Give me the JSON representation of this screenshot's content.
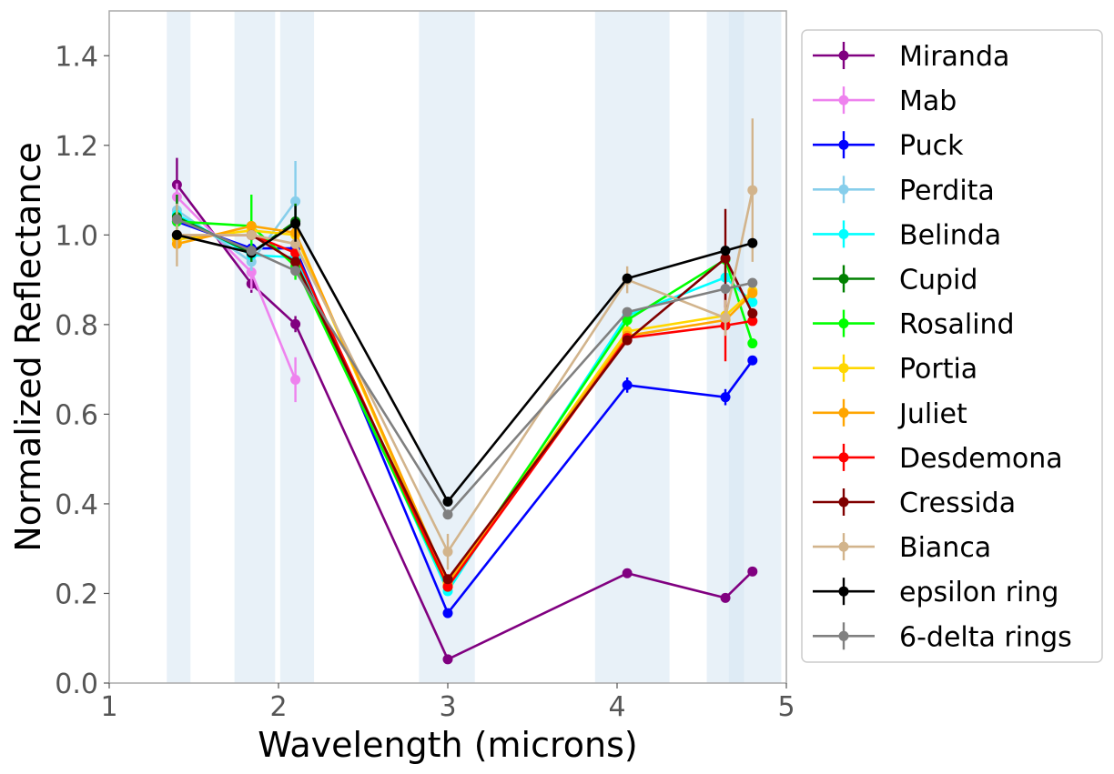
{
  "chart_data": {
    "type": "line",
    "title": "",
    "xlabel": "Wavelength (microns)",
    "ylabel": "Normalized Reflectance",
    "xlim": [
      1,
      5
    ],
    "ylim": [
      0,
      1.5
    ],
    "xticks": [
      1,
      2,
      3,
      4,
      5
    ],
    "xtick_labels": [
      "1",
      "2",
      "3",
      "4",
      "5"
    ],
    "yticks": [
      0.0,
      0.2,
      0.4,
      0.6,
      0.8,
      1.0,
      1.2,
      1.4
    ],
    "ytick_labels": [
      "0.0",
      "0.2",
      "0.4",
      "0.6",
      "0.8",
      "1.0",
      "1.2",
      "1.4"
    ],
    "grid": false,
    "legend_position": "right-outside",
    "band_color": "#d6e6f2",
    "shaded_bands": [
      [
        1.34,
        1.48
      ],
      [
        1.74,
        1.98
      ],
      [
        2.01,
        2.21
      ],
      [
        2.83,
        3.16
      ],
      [
        3.87,
        4.31
      ],
      [
        4.53,
        4.97
      ],
      [
        4.66,
        4.75
      ]
    ],
    "series": [
      {
        "name": "Miranda",
        "color": "#800080",
        "x": [
          1.4,
          1.84,
          2.1,
          3.0,
          4.06,
          4.64,
          4.8
        ],
        "y": [
          1.112,
          0.891,
          0.801,
          0.053,
          0.245,
          0.19,
          0.249
        ],
        "err": [
          0.06,
          0.02,
          0.018,
          0.01,
          0.008,
          0.008,
          0.008
        ]
      },
      {
        "name": "Mab",
        "color": "#ee82ee",
        "x": [
          1.4,
          1.84,
          2.1
        ],
        "y": [
          1.085,
          0.917,
          0.677
        ],
        "err": [
          0.03,
          0.04,
          0.05
        ]
      },
      {
        "name": "Puck",
        "color": "#0000ff",
        "x": [
          1.4,
          1.84,
          2.1,
          3.0,
          4.06,
          4.64,
          4.8
        ],
        "y": [
          1.03,
          0.97,
          0.97,
          0.156,
          0.665,
          0.638,
          0.72
        ],
        "err": [
          0.01,
          0.01,
          0.01,
          0.01,
          0.017,
          0.018,
          0.01
        ]
      },
      {
        "name": "Perdita",
        "color": "#87ceeb",
        "x": [
          1.4,
          1.84,
          2.1
        ],
        "y": [
          1.055,
          0.94,
          1.075
        ],
        "err": [
          0.02,
          0.02,
          0.09
        ]
      },
      {
        "name": "Belinda",
        "color": "#00ffff",
        "x": [
          1.4,
          1.84,
          2.1,
          3.0,
          4.06,
          4.64,
          4.8
        ],
        "y": [
          1.045,
          0.955,
          0.95,
          0.205,
          0.82,
          0.905,
          0.85
        ],
        "err": [
          0.01,
          0.01,
          0.01,
          0.01,
          0.01,
          0.01,
          0.01
        ]
      },
      {
        "name": "Cupid",
        "color": "#008000",
        "x": [
          1.4,
          1.84,
          2.1
        ],
        "y": [
          1.04,
          0.96,
          1.03
        ],
        "err": [
          0.05,
          0.02,
          0.04
        ]
      },
      {
        "name": "Rosalind",
        "color": "#00ff00",
        "x": [
          1.4,
          1.84,
          2.1,
          3.0,
          4.06,
          4.64,
          4.8
        ],
        "y": [
          1.03,
          1.02,
          0.93,
          0.215,
          0.81,
          0.945,
          0.758
        ],
        "err": [
          0.03,
          0.07,
          0.03,
          0.01,
          0.02,
          0.03,
          0.01
        ]
      },
      {
        "name": "Portia",
        "color": "#ffd700",
        "x": [
          1.4,
          1.84,
          2.1,
          3.0,
          4.06,
          4.64,
          4.8
        ],
        "y": [
          0.99,
          1.01,
          1.0,
          0.22,
          0.785,
          0.82,
          0.875
        ],
        "err": [
          0.01,
          0.01,
          0.01,
          0.01,
          0.01,
          0.01,
          0.01
        ]
      },
      {
        "name": "Juliet",
        "color": "#ffa500",
        "x": [
          1.4,
          1.84,
          2.1,
          3.0,
          4.06,
          4.64,
          4.8
        ],
        "y": [
          0.98,
          1.02,
          1.005,
          0.225,
          0.775,
          0.81,
          0.87
        ],
        "err": [
          0.01,
          0.01,
          0.01,
          0.01,
          0.01,
          0.01,
          0.01
        ]
      },
      {
        "name": "Desdemona",
        "color": "#ff0000",
        "x": [
          1.4,
          1.84,
          2.1,
          3.0,
          4.06,
          4.64,
          4.8
        ],
        "y": [
          1.0,
          1.0,
          0.96,
          0.215,
          0.77,
          0.798,
          0.808
        ],
        "err": [
          0.01,
          0.01,
          0.01,
          0.01,
          0.01,
          0.08,
          0.01
        ]
      },
      {
        "name": "Cressida",
        "color": "#800000",
        "x": [
          1.4,
          1.84,
          2.1,
          3.0,
          4.06,
          4.64,
          4.8
        ],
        "y": [
          1.0,
          1.0,
          0.94,
          0.232,
          0.765,
          0.948,
          0.825
        ],
        "err": [
          0.01,
          0.01,
          0.01,
          0.01,
          0.01,
          0.11,
          0.01
        ]
      },
      {
        "name": "Bianca",
        "color": "#d2b48c",
        "x": [
          1.4,
          1.84,
          2.1,
          3.0,
          4.06,
          4.64,
          4.8
        ],
        "y": [
          1.0,
          1.0,
          0.98,
          0.293,
          0.9,
          0.815,
          1.1
        ],
        "err": [
          0.07,
          0.01,
          0.01,
          0.04,
          0.03,
          0.04,
          0.16
        ]
      },
      {
        "name": "epsilon ring",
        "color": "#000000",
        "x": [
          1.4,
          1.84,
          2.1,
          3.0,
          4.06,
          4.64,
          4.8
        ],
        "y": [
          1.0,
          0.96,
          1.025,
          0.405,
          0.903,
          0.965,
          0.982
        ],
        "err": [
          0.01,
          0.01,
          0.04,
          0.01,
          0.01,
          0.01,
          0.01
        ]
      },
      {
        "name": "6-delta rings",
        "color": "#808080",
        "x": [
          1.4,
          1.84,
          2.1,
          3.0,
          4.06,
          4.64,
          4.8
        ],
        "y": [
          1.035,
          0.965,
          0.92,
          0.376,
          0.828,
          0.88,
          0.893
        ],
        "err": [
          0.01,
          0.01,
          0.01,
          0.01,
          0.01,
          0.01,
          0.01
        ]
      }
    ]
  }
}
